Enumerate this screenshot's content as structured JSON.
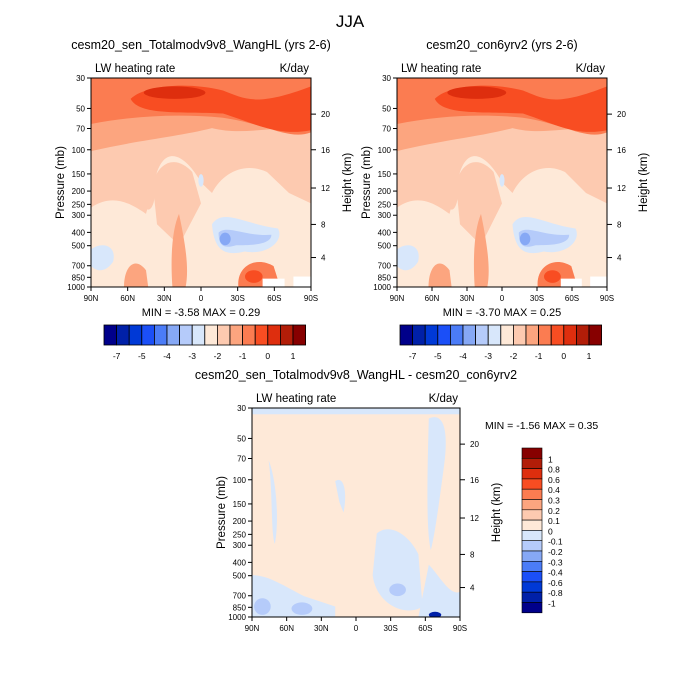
{
  "main_title": "JJA",
  "colors": {
    "neg": [
      "#00008a",
      "#0020a8",
      "#0039d6",
      "#1b4ff7",
      "#4b7cf7",
      "#86a8f5",
      "#b5cbfa",
      "#d8e7fb"
    ],
    "pos": [
      "#fee9d8",
      "#fdcab0",
      "#fca57f",
      "#fb7c51",
      "#f84d22",
      "#de2e0e",
      "#b21d08",
      "#870000"
    ]
  },
  "chart_data": [
    {
      "type": "heatmap",
      "title": "cesm20_sen_Totalmodv9v8_WangHL (yrs 2-6)",
      "left_string": "LW heating rate",
      "right_string": "K/day",
      "ylabel": "Pressure (mb)",
      "ylabel_right": "Height (km)",
      "xticks": [
        "90N",
        "60N",
        "30N",
        "0",
        "30S",
        "60S",
        "90S"
      ],
      "yticks": [
        "30",
        "50",
        "70",
        "100",
        "150",
        "200",
        "250",
        "300",
        "400",
        "500",
        "700",
        "850",
        "1000"
      ],
      "yticks_right": [
        "20",
        "16",
        "12",
        "8",
        "4"
      ],
      "min_max": "MIN =  -3.58  MAX =   0.29",
      "colorbar_labels": [
        "-7",
        "-5",
        "-4",
        "-3",
        "-2",
        "-1",
        "0",
        "1"
      ]
    },
    {
      "type": "heatmap",
      "title": "cesm20_con6yrv2 (yrs 2-6)",
      "left_string": "LW heating rate",
      "right_string": "K/day",
      "ylabel": "Pressure (mb)",
      "ylabel_right": "Height (km)",
      "xticks": [
        "90N",
        "60N",
        "30N",
        "0",
        "30S",
        "60S",
        "90S"
      ],
      "yticks": [
        "30",
        "50",
        "70",
        "100",
        "150",
        "200",
        "250",
        "300",
        "400",
        "500",
        "700",
        "850",
        "1000"
      ],
      "yticks_right": [
        "20",
        "16",
        "12",
        "8",
        "4"
      ],
      "min_max": "MIN =  -3.70  MAX =   0.25",
      "colorbar_labels": [
        "-7",
        "-5",
        "-4",
        "-3",
        "-2",
        "-1",
        "0",
        "1"
      ]
    },
    {
      "type": "heatmap",
      "title": "cesm20_sen_Totalmodv9v8_WangHL - cesm20_con6yrv2",
      "left_string": "LW heating rate",
      "right_string": "K/day",
      "ylabel": "Pressure (mb)",
      "ylabel_right": "Height (km)",
      "xticks": [
        "90N",
        "60N",
        "30N",
        "0",
        "30S",
        "60S",
        "90S"
      ],
      "yticks": [
        "30",
        "50",
        "70",
        "100",
        "150",
        "200",
        "250",
        "300",
        "400",
        "500",
        "700",
        "850",
        "1000"
      ],
      "yticks_right": [
        "20",
        "16",
        "12",
        "8",
        "4"
      ],
      "min_max": "MIN =  -1.56  MAX =   0.35",
      "colorbar_labels": [
        "1",
        "0.8",
        "0.6",
        "0.4",
        "0.3",
        "0.2",
        "0.1",
        "0",
        "-0.1",
        "-0.2",
        "-0.3",
        "-0.4",
        "-0.6",
        "-0.8",
        "-1"
      ]
    }
  ]
}
